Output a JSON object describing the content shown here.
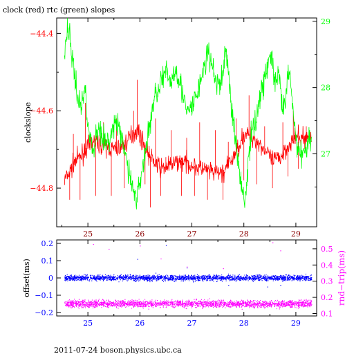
{
  "title": "clock (red) rtc (green) slopes",
  "footer": "2011-07-24 boson.physics.ubc.ca",
  "colors": {
    "clock": "#ff0000",
    "rtc": "#00ff00",
    "offset": "#0000ff",
    "rndtrip": "#ff00ff",
    "axis": "#000000",
    "upper_x_ticks": "#8b0000",
    "lower_x_ticks": "#0000ff"
  },
  "chart_data": [
    {
      "type": "line",
      "x_range": [
        24.4,
        29.4
      ],
      "x_ticks": [
        {
          "value": 25,
          "label": "25"
        },
        {
          "value": 26,
          "label": "26"
        },
        {
          "value": 27,
          "label": "27"
        },
        {
          "value": 28,
          "label": "28"
        },
        {
          "value": 29,
          "label": "29"
        }
      ],
      "y_left": {
        "label": "clockslope",
        "range": [
          -44.9,
          -44.36
        ],
        "ticks": [
          {
            "value": -44.4,
            "label": "−44.4"
          },
          {
            "value": -44.6,
            "label": "−44.6"
          },
          {
            "value": -44.8,
            "label": "−44.8"
          }
        ],
        "minor_ticks": [
          -44.5,
          -44.7,
          -44.9
        ]
      },
      "y_right": {
        "label": "",
        "range": [
          25.9,
          29.05
        ],
        "ticks": [
          {
            "value": 29,
            "label": "29"
          },
          {
            "value": 28,
            "label": "28"
          },
          {
            "value": 27,
            "label": "27"
          }
        ],
        "minor_ticks": [
          28.5,
          27.5,
          26.5
        ]
      },
      "series": [
        {
          "name": "clock",
          "axis": "left",
          "style": "noisy",
          "anchors": [
            [
              24.55,
              -44.78
            ],
            [
              24.65,
              -44.76
            ],
            [
              24.75,
              -44.73
            ],
            [
              24.85,
              -44.72
            ],
            [
              24.95,
              -44.7
            ],
            [
              25.1,
              -44.68
            ],
            [
              25.3,
              -44.69
            ],
            [
              25.5,
              -44.7
            ],
            [
              25.7,
              -44.69
            ],
            [
              25.85,
              -44.66
            ],
            [
              25.95,
              -44.65
            ],
            [
              26.05,
              -44.68
            ],
            [
              26.2,
              -44.72
            ],
            [
              26.4,
              -44.75
            ],
            [
              26.6,
              -44.74
            ],
            [
              26.8,
              -44.73
            ],
            [
              27.0,
              -44.74
            ],
            [
              27.2,
              -44.75
            ],
            [
              27.4,
              -44.76
            ],
            [
              27.6,
              -44.76
            ],
            [
              27.8,
              -44.72
            ],
            [
              28.0,
              -44.66
            ],
            [
              28.2,
              -44.67
            ],
            [
              28.4,
              -44.7
            ],
            [
              28.55,
              -44.73
            ],
            [
              28.7,
              -44.72
            ],
            [
              28.85,
              -44.69
            ],
            [
              29.0,
              -44.67
            ],
            [
              29.1,
              -44.67
            ],
            [
              29.3,
              -44.67
            ]
          ],
          "noise": 0.012,
          "spikes": [
            [
              24.65,
              -44.83
            ],
            [
              24.72,
              -44.66
            ],
            [
              24.85,
              -44.83
            ],
            [
              24.95,
              -44.58
            ],
            [
              25.15,
              -44.82
            ],
            [
              25.3,
              -44.63
            ],
            [
              25.45,
              -44.82
            ],
            [
              25.55,
              -44.62
            ],
            [
              25.7,
              -44.8
            ],
            [
              25.88,
              -44.6
            ],
            [
              25.95,
              -44.52
            ],
            [
              26.1,
              -44.79
            ],
            [
              26.2,
              -44.85
            ],
            [
              26.3,
              -44.62
            ],
            [
              26.4,
              -44.82
            ],
            [
              26.5,
              -44.72
            ],
            [
              26.6,
              -44.65
            ],
            [
              26.8,
              -44.82
            ],
            [
              26.9,
              -44.67
            ],
            [
              27.05,
              -44.82
            ],
            [
              27.15,
              -44.63
            ],
            [
              27.3,
              -44.83
            ],
            [
              27.45,
              -44.65
            ],
            [
              27.6,
              -44.83
            ],
            [
              27.7,
              -44.68
            ],
            [
              27.85,
              -44.62
            ],
            [
              28.0,
              -44.78
            ],
            [
              28.1,
              -44.56
            ],
            [
              28.25,
              -44.79
            ],
            [
              28.4,
              -44.64
            ],
            [
              28.55,
              -44.8
            ],
            [
              28.75,
              -44.63
            ],
            [
              28.85,
              -44.77
            ],
            [
              28.95,
              -44.6
            ],
            [
              29.05,
              -44.75
            ],
            [
              29.2,
              -44.64
            ]
          ]
        },
        {
          "name": "rtc",
          "axis": "right",
          "style": "noisy",
          "anchors": [
            [
              24.55,
              28.5
            ],
            [
              24.6,
              28.9
            ],
            [
              24.65,
              28.8
            ],
            [
              24.72,
              28.3
            ],
            [
              24.8,
              27.9
            ],
            [
              24.85,
              27.7
            ],
            [
              24.9,
              27.8
            ],
            [
              24.95,
              28.0
            ],
            [
              25.0,
              27.5
            ],
            [
              25.05,
              27.2
            ],
            [
              25.1,
              27.0
            ],
            [
              25.15,
              27.3
            ],
            [
              25.25,
              27.4
            ],
            [
              25.35,
              27.1
            ],
            [
              25.45,
              27.3
            ],
            [
              25.55,
              27.5
            ],
            [
              25.65,
              27.2
            ],
            [
              25.75,
              26.9
            ],
            [
              25.85,
              26.5
            ],
            [
              25.95,
              26.3
            ],
            [
              26.0,
              26.6
            ],
            [
              26.1,
              27.0
            ],
            [
              26.2,
              27.5
            ],
            [
              26.3,
              27.9
            ],
            [
              26.4,
              28.1
            ],
            [
              26.5,
              28.2
            ],
            [
              26.6,
              28.1
            ],
            [
              26.7,
              28.3
            ],
            [
              26.8,
              28.0
            ],
            [
              26.9,
              27.6
            ],
            [
              27.0,
              27.7
            ],
            [
              27.1,
              27.9
            ],
            [
              27.2,
              28.2
            ],
            [
              27.3,
              28.5
            ],
            [
              27.4,
              28.3
            ],
            [
              27.5,
              28.0
            ],
            [
              27.6,
              28.2
            ],
            [
              27.65,
              28.6
            ],
            [
              27.7,
              28.3
            ],
            [
              27.75,
              27.8
            ],
            [
              27.85,
              27.1
            ],
            [
              27.95,
              26.6
            ],
            [
              28.0,
              26.3
            ],
            [
              28.05,
              26.5
            ],
            [
              28.1,
              27.0
            ],
            [
              28.15,
              27.3
            ],
            [
              28.25,
              27.6
            ],
            [
              28.35,
              28.0
            ],
            [
              28.45,
              28.3
            ],
            [
              28.5,
              28.5
            ],
            [
              28.55,
              28.4
            ],
            [
              28.6,
              28.0
            ],
            [
              28.65,
              28.2
            ],
            [
              28.7,
              28.0
            ],
            [
              28.75,
              27.6
            ],
            [
              28.8,
              27.8
            ],
            [
              28.85,
              28.2
            ],
            [
              28.9,
              28.1
            ],
            [
              28.95,
              27.6
            ],
            [
              29.0,
              27.2
            ],
            [
              29.1,
              27.0
            ],
            [
              29.2,
              27.1
            ],
            [
              29.3,
              27.3
            ]
          ],
          "noise": 0.1,
          "spikes": []
        }
      ]
    },
    {
      "type": "scatter",
      "x_range": [
        24.4,
        29.4
      ],
      "x_ticks": [
        {
          "value": 25,
          "label": "25"
        },
        {
          "value": 26,
          "label": "26"
        },
        {
          "value": 27,
          "label": "27"
        },
        {
          "value": 28,
          "label": "28"
        },
        {
          "value": 29,
          "label": "29"
        }
      ],
      "y_left": {
        "label": "offset(ms)",
        "range": [
          -0.22,
          0.22
        ],
        "ticks": [
          {
            "value": 0.2,
            "label": "0.2"
          },
          {
            "value": 0.1,
            "label": "0.1"
          },
          {
            "value": 0,
            "label": "0"
          },
          {
            "value": -0.1,
            "label": "−0.1"
          },
          {
            "value": -0.2,
            "label": "−0.2"
          }
        ]
      },
      "y_right": {
        "label": "rnd−trip(ms)",
        "range": [
          0.085,
          0.555
        ],
        "ticks": [
          {
            "value": 0.5,
            "label": "0.5"
          },
          {
            "value": 0.4,
            "label": "0.4"
          },
          {
            "value": 0.3,
            "label": "0.3"
          },
          {
            "value": 0.2,
            "label": "0.2"
          },
          {
            "value": 0.1,
            "label": "0.1"
          }
        ]
      },
      "series": [
        {
          "name": "offset",
          "axis": "left",
          "style": "band",
          "x_start": 24.55,
          "x_end": 29.3,
          "center": 0.0,
          "spread": 0.008,
          "count": 2400,
          "outliers": [
            [
              24.6,
              0.01
            ],
            [
              25.95,
              0.11
            ],
            [
              26.5,
              0.19
            ],
            [
              26.9,
              0.06
            ],
            [
              27.7,
              -0.04
            ],
            [
              28.7,
              -0.04
            ],
            [
              28.45,
              -0.05
            ],
            [
              26.3,
              0.03
            ]
          ]
        },
        {
          "name": "rnd-trip",
          "axis": "right",
          "style": "band",
          "x_start": 24.55,
          "x_end": 29.3,
          "center": 0.16,
          "spread": 0.011,
          "count": 2400,
          "outliers": [
            [
              25.1,
              0.53
            ],
            [
              25.4,
              0.5
            ],
            [
              26.0,
              0.52
            ],
            [
              26.9,
              0.39
            ],
            [
              27.6,
              0.38
            ],
            [
              28.55,
              0.54
            ],
            [
              28.7,
              0.49
            ],
            [
              26.4,
              0.44
            ]
          ]
        }
      ]
    }
  ]
}
